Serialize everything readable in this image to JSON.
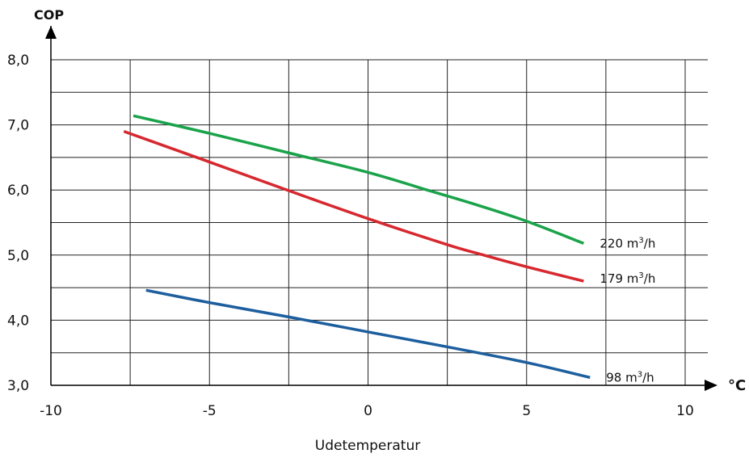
{
  "chart_data": {
    "type": "line",
    "ylabel": "COP",
    "xunit": "°C",
    "xlabel": "Udetemperatur",
    "xlim": [
      -10,
      10
    ],
    "ylim": [
      3.0,
      8.0
    ],
    "x_ticks": [
      -10,
      -5,
      0,
      5,
      10
    ],
    "x_tick_labels": [
      "-10",
      "-5",
      "0",
      "5",
      "10"
    ],
    "y_ticks": [
      3.0,
      4.0,
      5.0,
      6.0,
      7.0,
      8.0
    ],
    "y_tick_labels": [
      "3,0",
      "4,0",
      "5,0",
      "6,0",
      "7,0",
      "8,0"
    ],
    "x_grid": [
      -7.5,
      -5,
      -2.5,
      0,
      2.5,
      5,
      7.5,
      10
    ],
    "y_grid": [
      3.5,
      4.0,
      4.5,
      5.0,
      5.5,
      6.0,
      6.5,
      7.0,
      7.5,
      8.0
    ],
    "grid": true,
    "series": [
      {
        "name": "220 m³/h",
        "label_base": "220 m",
        "label_sup": "3",
        "label_tail": "/h",
        "color": "#1aa34a",
        "x": [
          -7.4,
          -5,
          -2.5,
          0,
          2,
          3.5,
          5,
          6.8
        ],
        "y": [
          7.14,
          6.87,
          6.57,
          6.27,
          5.98,
          5.76,
          5.52,
          5.18
        ]
      },
      {
        "name": "179 m³/h",
        "label_base": "179 m",
        "label_sup": "3",
        "label_tail": "/h",
        "color": "#d7282f",
        "x": [
          -7.7,
          -5,
          -2.5,
          0,
          2.5,
          3.5,
          5,
          6.8
        ],
        "y": [
          6.9,
          6.43,
          5.99,
          5.56,
          5.16,
          5.02,
          4.82,
          4.6
        ],
        "label_y": 4.64
      },
      {
        "name": "98 m³/h",
        "label_base": "98 m",
        "label_sup": "3",
        "label_tail": "/h",
        "color": "#1d5e9e",
        "x": [
          -7.0,
          -5,
          -2.5,
          0,
          2.5,
          5,
          7.0
        ],
        "y": [
          4.46,
          4.27,
          4.05,
          3.82,
          3.59,
          3.35,
          3.12
        ]
      }
    ]
  }
}
